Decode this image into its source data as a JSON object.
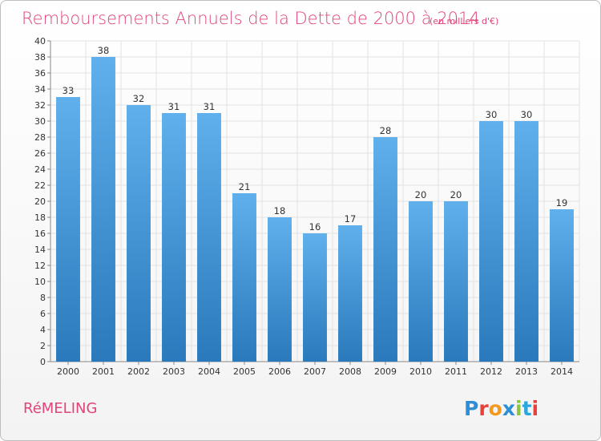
{
  "chart_data": {
    "type": "bar",
    "title": "Remboursements Annuels de la Dette de 2000 à 2014",
    "subtitle": "(en milliers d'€)",
    "categories": [
      "2000",
      "2001",
      "2002",
      "2003",
      "2004",
      "2005",
      "2006",
      "2007",
      "2008",
      "2009",
      "2010",
      "2011",
      "2012",
      "2013",
      "2014"
    ],
    "values": [
      33,
      38,
      32,
      31,
      31,
      21,
      18,
      16,
      17,
      28,
      20,
      20,
      30,
      30,
      19
    ],
    "ylim": [
      0,
      40
    ],
    "yticks": [
      0,
      2,
      4,
      6,
      8,
      10,
      12,
      14,
      16,
      18,
      20,
      22,
      24,
      26,
      28,
      30,
      32,
      34,
      36,
      38,
      40
    ],
    "xlabel": "",
    "ylabel": "",
    "grid": true,
    "legend": "none",
    "bar_color_top": "#5fb0ec",
    "bar_color_bottom": "#2a79bc"
  },
  "footer": {
    "commune": "RéMELING"
  },
  "logo": {
    "text": "Proxiti",
    "letter_colors": [
      "#2f8fd6",
      "#e8403a",
      "#f29a1f",
      "#2f8fd6",
      "#8cc63f",
      "#29a8df",
      "#e8403a"
    ]
  }
}
